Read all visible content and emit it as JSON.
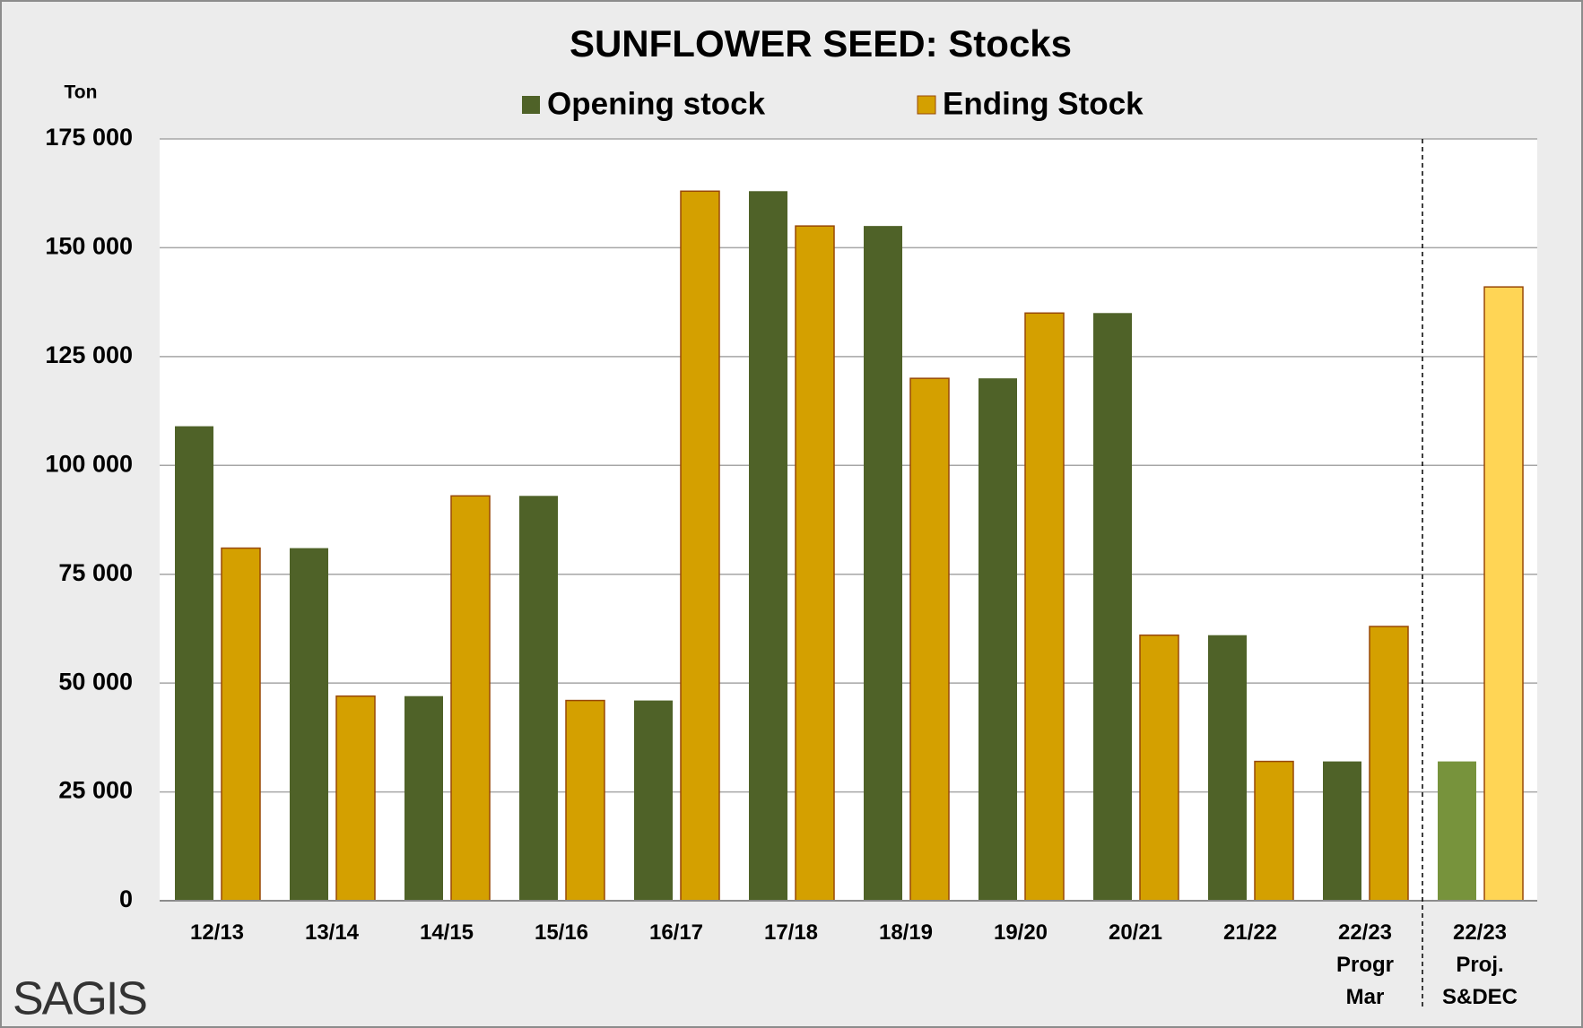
{
  "chart_data": {
    "type": "bar",
    "title": "SUNFLOWER SEED: Stocks",
    "y_label": "Ton",
    "logo": "SAGIS",
    "categories": [
      "12/13",
      "13/14",
      "14/15",
      "15/16",
      "16/17",
      "17/18",
      "18/19",
      "19/20",
      "20/21",
      "21/22",
      "22/23\nProgr\nMar",
      "22/23\nProj.\nS&DEC"
    ],
    "series": [
      {
        "name": "Opening stock",
        "color": "#4f6228",
        "colors": [
          "#4f6228",
          "#4f6228",
          "#4f6228",
          "#4f6228",
          "#4f6228",
          "#4f6228",
          "#4f6228",
          "#4f6228",
          "#4f6228",
          "#4f6228",
          "#4f6228",
          "#77933c"
        ],
        "values": [
          109000,
          81000,
          47000,
          93000,
          46000,
          163000,
          155000,
          120000,
          135000,
          61000,
          32000,
          32000
        ]
      },
      {
        "name": "Ending Stock",
        "color": "#d4a000",
        "colors": [
          "#d4a000",
          "#d4a000",
          "#d4a000",
          "#d4a000",
          "#d4a000",
          "#d4a000",
          "#d4a000",
          "#d4a000",
          "#d4a000",
          "#d4a000",
          "#d4a000",
          "#ffd555"
        ],
        "values": [
          81000,
          47000,
          93000,
          46000,
          163000,
          155000,
          120000,
          135000,
          61000,
          32000,
          63000,
          141000
        ]
      }
    ],
    "ylim": [
      0,
      175000
    ],
    "yticks": [
      0,
      {
        "value": 25000,
        "label": "25 000"
      },
      {
        "value": 50000,
        "label": "50 000"
      },
      {
        "value": 75000,
        "label": "75 000"
      },
      {
        "value": 100000,
        "label": "100 000"
      },
      {
        "value": 125000,
        "label": "125 000"
      },
      {
        "value": 150000,
        "label": "150 000"
      },
      {
        "value": 175000,
        "label": "175 000"
      }
    ],
    "grid": true
  }
}
